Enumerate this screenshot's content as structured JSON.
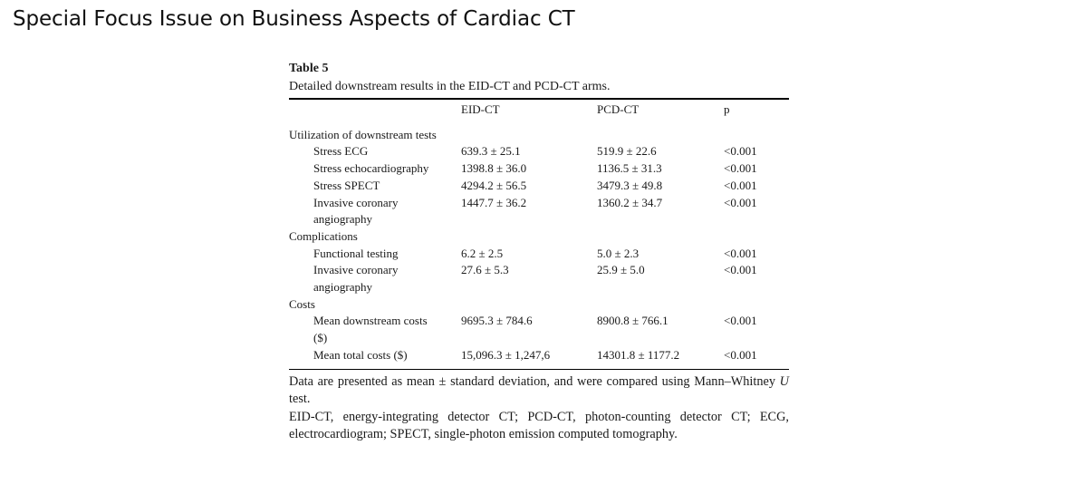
{
  "header": {
    "title": "Special Focus Issue on Business Aspects of Cardiac CT"
  },
  "table": {
    "label": "Table 5",
    "caption": "Detailed downstream results in the EID-CT and PCD-CT arms.",
    "columns": [
      "",
      "EID-CT",
      "PCD-CT",
      "p"
    ],
    "sections": [
      {
        "title": "Utilization of downstream tests",
        "rows": [
          {
            "label": "Stress ECG",
            "eid": "639.3 ± 25.1",
            "pcd": "519.9 ± 22.6",
            "p": "<0.001"
          },
          {
            "label": "Stress echocardiography",
            "eid": "1398.8 ± 36.0",
            "pcd": "1136.5 ± 31.3",
            "p": "<0.001"
          },
          {
            "label": "Stress SPECT",
            "eid": "4294.2 ± 56.5",
            "pcd": "3479.3 ± 49.8",
            "p": "<0.001"
          },
          {
            "label": "Invasive coronary angiography",
            "eid": "1447.7 ± 36.2",
            "pcd": "1360.2 ± 34.7",
            "p": "<0.001"
          }
        ]
      },
      {
        "title": "Complications",
        "rows": [
          {
            "label": "Functional testing",
            "eid": "6.2 ± 2.5",
            "pcd": "5.0 ± 2.3",
            "p": "<0.001"
          },
          {
            "label": "Invasive coronary angiography",
            "eid": "27.6 ± 5.3",
            "pcd": "25.9 ± 5.0",
            "p": "<0.001"
          }
        ]
      },
      {
        "title": "Costs",
        "rows": [
          {
            "label": "Mean downstream costs ($)",
            "eid": "9695.3 ± 784.6",
            "pcd": "8900.8 ± 766.1",
            "p": "<0.001"
          },
          {
            "label": "Mean total costs ($)",
            "eid": "15,096.3 ± 1,247,6",
            "pcd": "14301.8 ± 1177.2",
            "p": "<0.001"
          }
        ]
      }
    ],
    "footnotes": {
      "stats_pre": "Data are presented as mean ± standard deviation, and were compared using Mann–Whitney ",
      "stats_italic": "U",
      "stats_post": " test.",
      "abbreviations": "EID-CT, energy-integrating detector CT; PCD-CT, photon-counting detector CT; ECG, electrocardiogram; SPECT, single-photon emission computed tomography."
    }
  }
}
